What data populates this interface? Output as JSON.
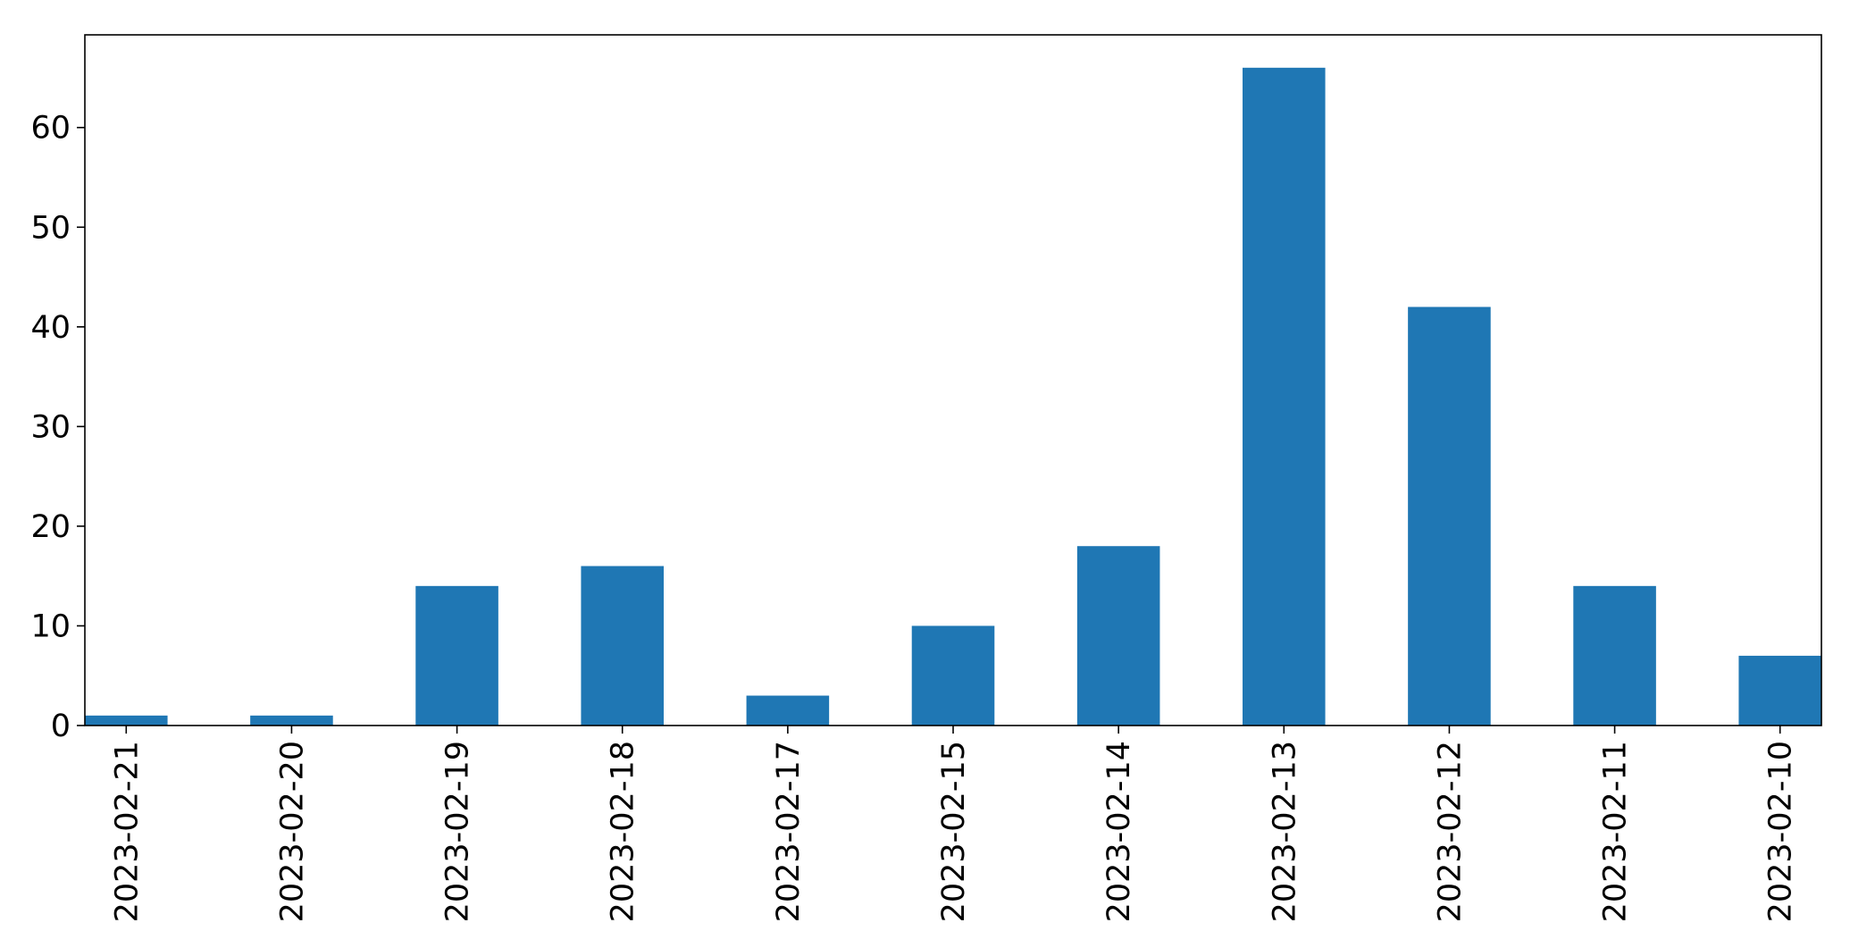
{
  "chart_data": {
    "type": "bar",
    "categories": [
      "2023-02-21",
      "2023-02-20",
      "2023-02-19",
      "2023-02-18",
      "2023-02-17",
      "2023-02-15",
      "2023-02-14",
      "2023-02-13",
      "2023-02-12",
      "2023-02-11",
      "2023-02-10"
    ],
    "values": [
      1,
      1,
      14,
      16,
      3,
      10,
      18,
      66,
      42,
      14,
      7
    ],
    "ylim": [
      0,
      69.3
    ],
    "yticks": [
      0,
      10,
      20,
      30,
      40,
      50,
      60
    ],
    "grid": false,
    "legend": "none",
    "bar_color": "#1f77b4"
  }
}
